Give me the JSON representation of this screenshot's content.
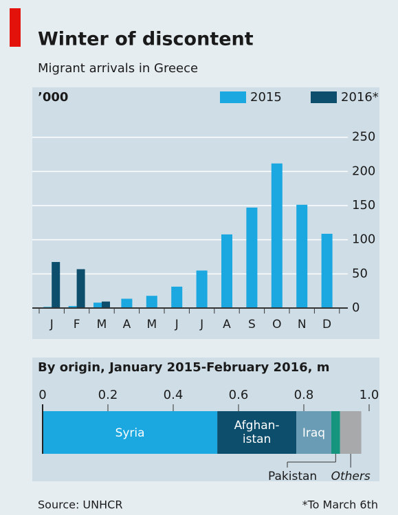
{
  "chart_data": [
    {
      "type": "bar",
      "title": "Winter of discontent",
      "subtitle": "Migrant arrivals in Greece",
      "unit_label": "’000",
      "categories": [
        "J",
        "F",
        "M",
        "A",
        "M",
        "J",
        "J",
        "A",
        "S",
        "O",
        "N",
        "D"
      ],
      "series": [
        {
          "name": "2015",
          "color": "#1ba7e0",
          "values": [
            1.7,
            2.9,
            7.9,
            13.6,
            17.9,
            31.3,
            54.9,
            107.8,
            147.1,
            211.7,
            151.2,
            108.7
          ]
        },
        {
          "name": "2016*",
          "color": "#0d4e6c",
          "values": [
            67.4,
            56.9,
            9.5,
            null,
            null,
            null,
            null,
            null,
            null,
            null,
            null,
            null
          ]
        }
      ],
      "ylim": [
        0,
        300
      ],
      "yticks": [
        0,
        50,
        100,
        150,
        200,
        250
      ],
      "grid": true
    },
    {
      "type": "stacked-bar",
      "title": "By origin, January 2015-February 2016, m",
      "series": [
        {
          "name": "Syria",
          "color": "#1ba7e0",
          "values": [
            0.535
          ]
        },
        {
          "name_lines": [
            "Afghan-",
            "istan"
          ],
          "color": "#0d4e6c",
          "values": [
            0.242
          ]
        },
        {
          "name": "Iraq",
          "color": "#6a9cb5",
          "values": [
            0.107
          ]
        },
        {
          "name": "Pakistan",
          "color": "#16957e",
          "values": [
            0.027
          ],
          "label_position": "below"
        },
        {
          "name": "Others",
          "color": "#a7a9ab",
          "values": [
            0.065
          ],
          "label_position": "below",
          "italic": true
        }
      ],
      "xlim": [
        0,
        1
      ],
      "xticks": [
        0,
        0.2,
        0.4,
        0.6,
        0.8,
        {
          "value": 1,
          "label": "1.0"
        }
      ]
    }
  ],
  "footer": {
    "source": "Source: UNHCR",
    "note": "*To March 6th"
  }
}
